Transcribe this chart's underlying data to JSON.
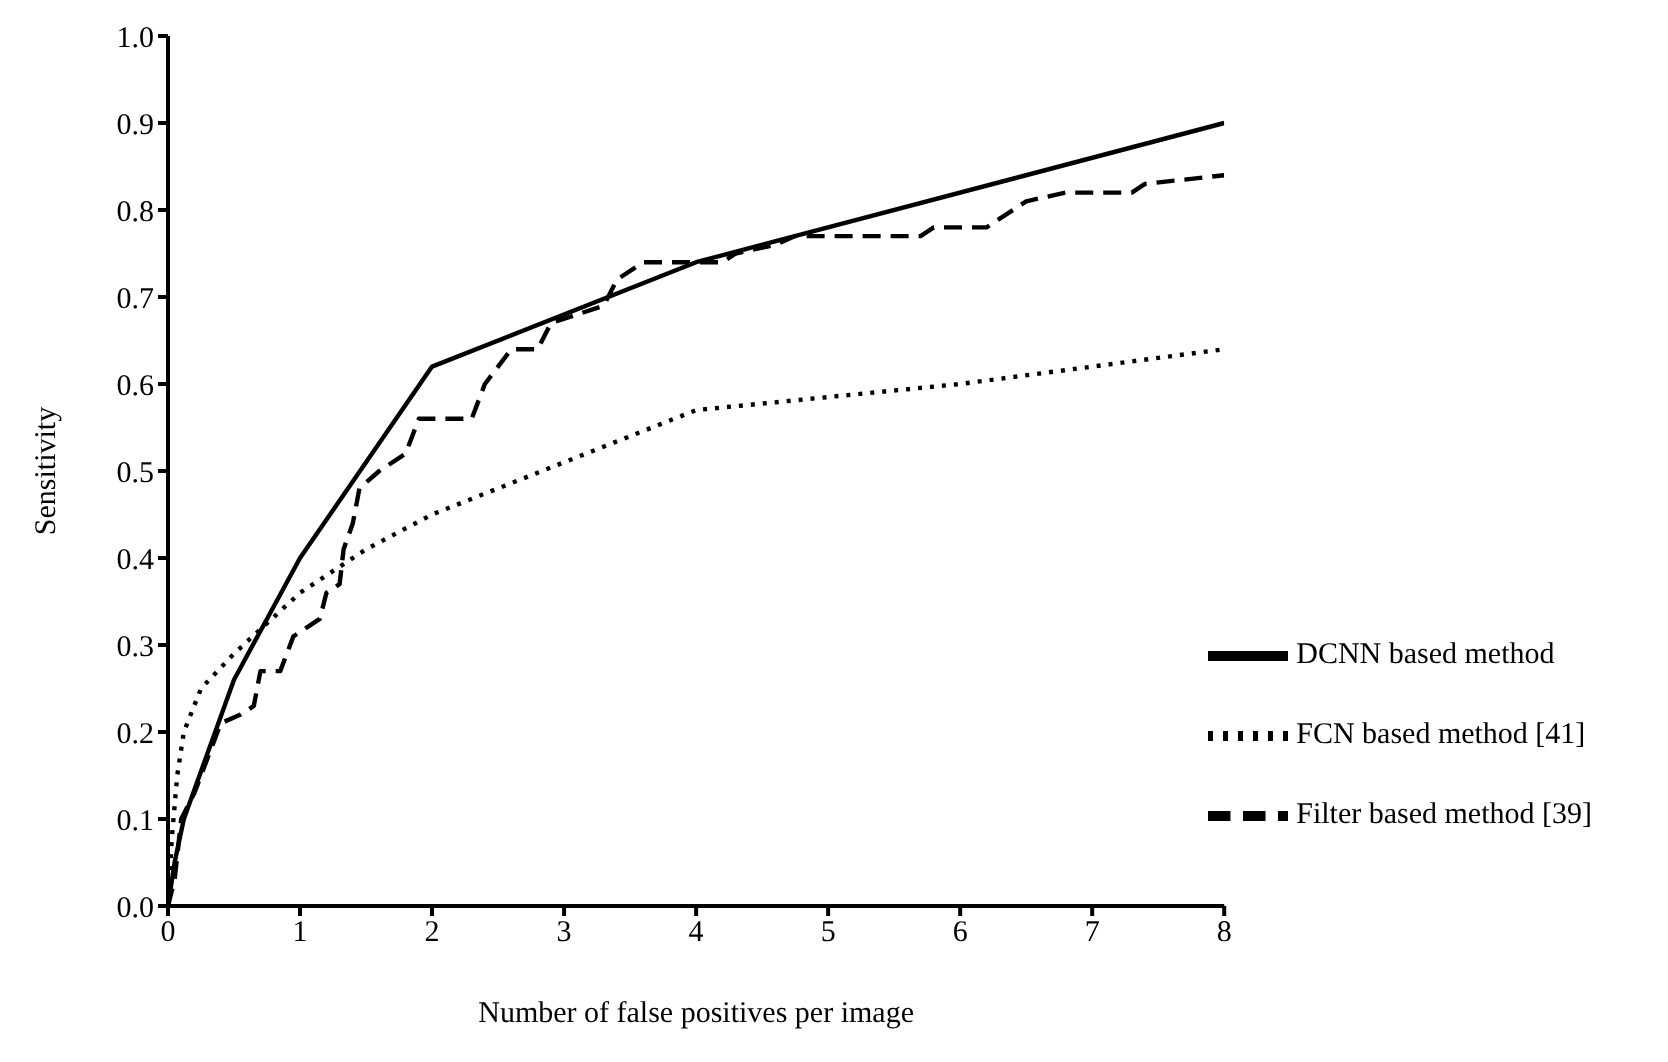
{
  "chart_data": {
    "type": "line",
    "xlabel": "Number of false positives per image",
    "ylabel": "Sensitivity",
    "xlim": [
      0,
      8
    ],
    "xticks": [
      0,
      1,
      2,
      3,
      4,
      5,
      6,
      7,
      8
    ],
    "ylim": [
      0,
      1
    ],
    "yticks": [
      {
        "value": 0,
        "label": "0.0"
      },
      0.1,
      0.2,
      0.3,
      0.4,
      0.5,
      0.6,
      0.7,
      0.8,
      0.9,
      {
        "value": 1,
        "label": "1.0"
      }
    ],
    "grid": false,
    "legend": "bottom right",
    "marker": "none",
    "series": [
      {
        "name": "DCNN based method",
        "color": "#000000",
        "line_style": "solid",
        "x": [
          0,
          0.05,
          0.12,
          0.5,
          1,
          2,
          4,
          8
        ],
        "values": [
          0,
          0.05,
          0.1,
          0.26,
          0.4,
          0.62,
          0.74,
          0.9
        ]
      },
      {
        "name": "Filter based method [39]",
        "color": "#000000",
        "line_style": "dashed",
        "x": [
          0,
          0.05,
          0.1,
          0.2,
          0.4,
          0.55,
          0.65,
          0.7,
          0.85,
          0.95,
          1.05,
          1.15,
          1.2,
          1.3,
          1.33,
          1.4,
          1.45,
          1.6,
          1.8,
          1.9,
          2.3,
          2.4,
          2.5,
          2.6,
          2.8,
          2.9,
          3.1,
          3.3,
          3.4,
          3.6,
          4.2,
          4.3,
          4.6,
          4.75,
          5.7,
          5.8,
          6.2,
          6.3,
          6.5,
          6.8,
          7.3,
          7.4,
          8
        ],
        "values": [
          0,
          0.03,
          0.1,
          0.13,
          0.21,
          0.22,
          0.23,
          0.27,
          0.27,
          0.31,
          0.32,
          0.33,
          0.36,
          0.37,
          0.41,
          0.44,
          0.48,
          0.5,
          0.52,
          0.56,
          0.56,
          0.6,
          0.62,
          0.64,
          0.64,
          0.67,
          0.68,
          0.69,
          0.72,
          0.74,
          0.74,
          0.75,
          0.76,
          0.77,
          0.77,
          0.78,
          0.78,
          0.79,
          0.81,
          0.82,
          0.82,
          0.83,
          0.84
        ]
      },
      {
        "name": "FCN based method [41]",
        "color": "#000000",
        "line_style": "dotted",
        "x": [
          0,
          0.03,
          0.07,
          0.12,
          0.25,
          0.5,
          1,
          1.5,
          2,
          3,
          4,
          6,
          8
        ],
        "values": [
          0,
          0.08,
          0.15,
          0.2,
          0.25,
          0.29,
          0.36,
          0.41,
          0.45,
          0.51,
          0.57,
          0.6,
          0.64
        ]
      }
    ]
  }
}
